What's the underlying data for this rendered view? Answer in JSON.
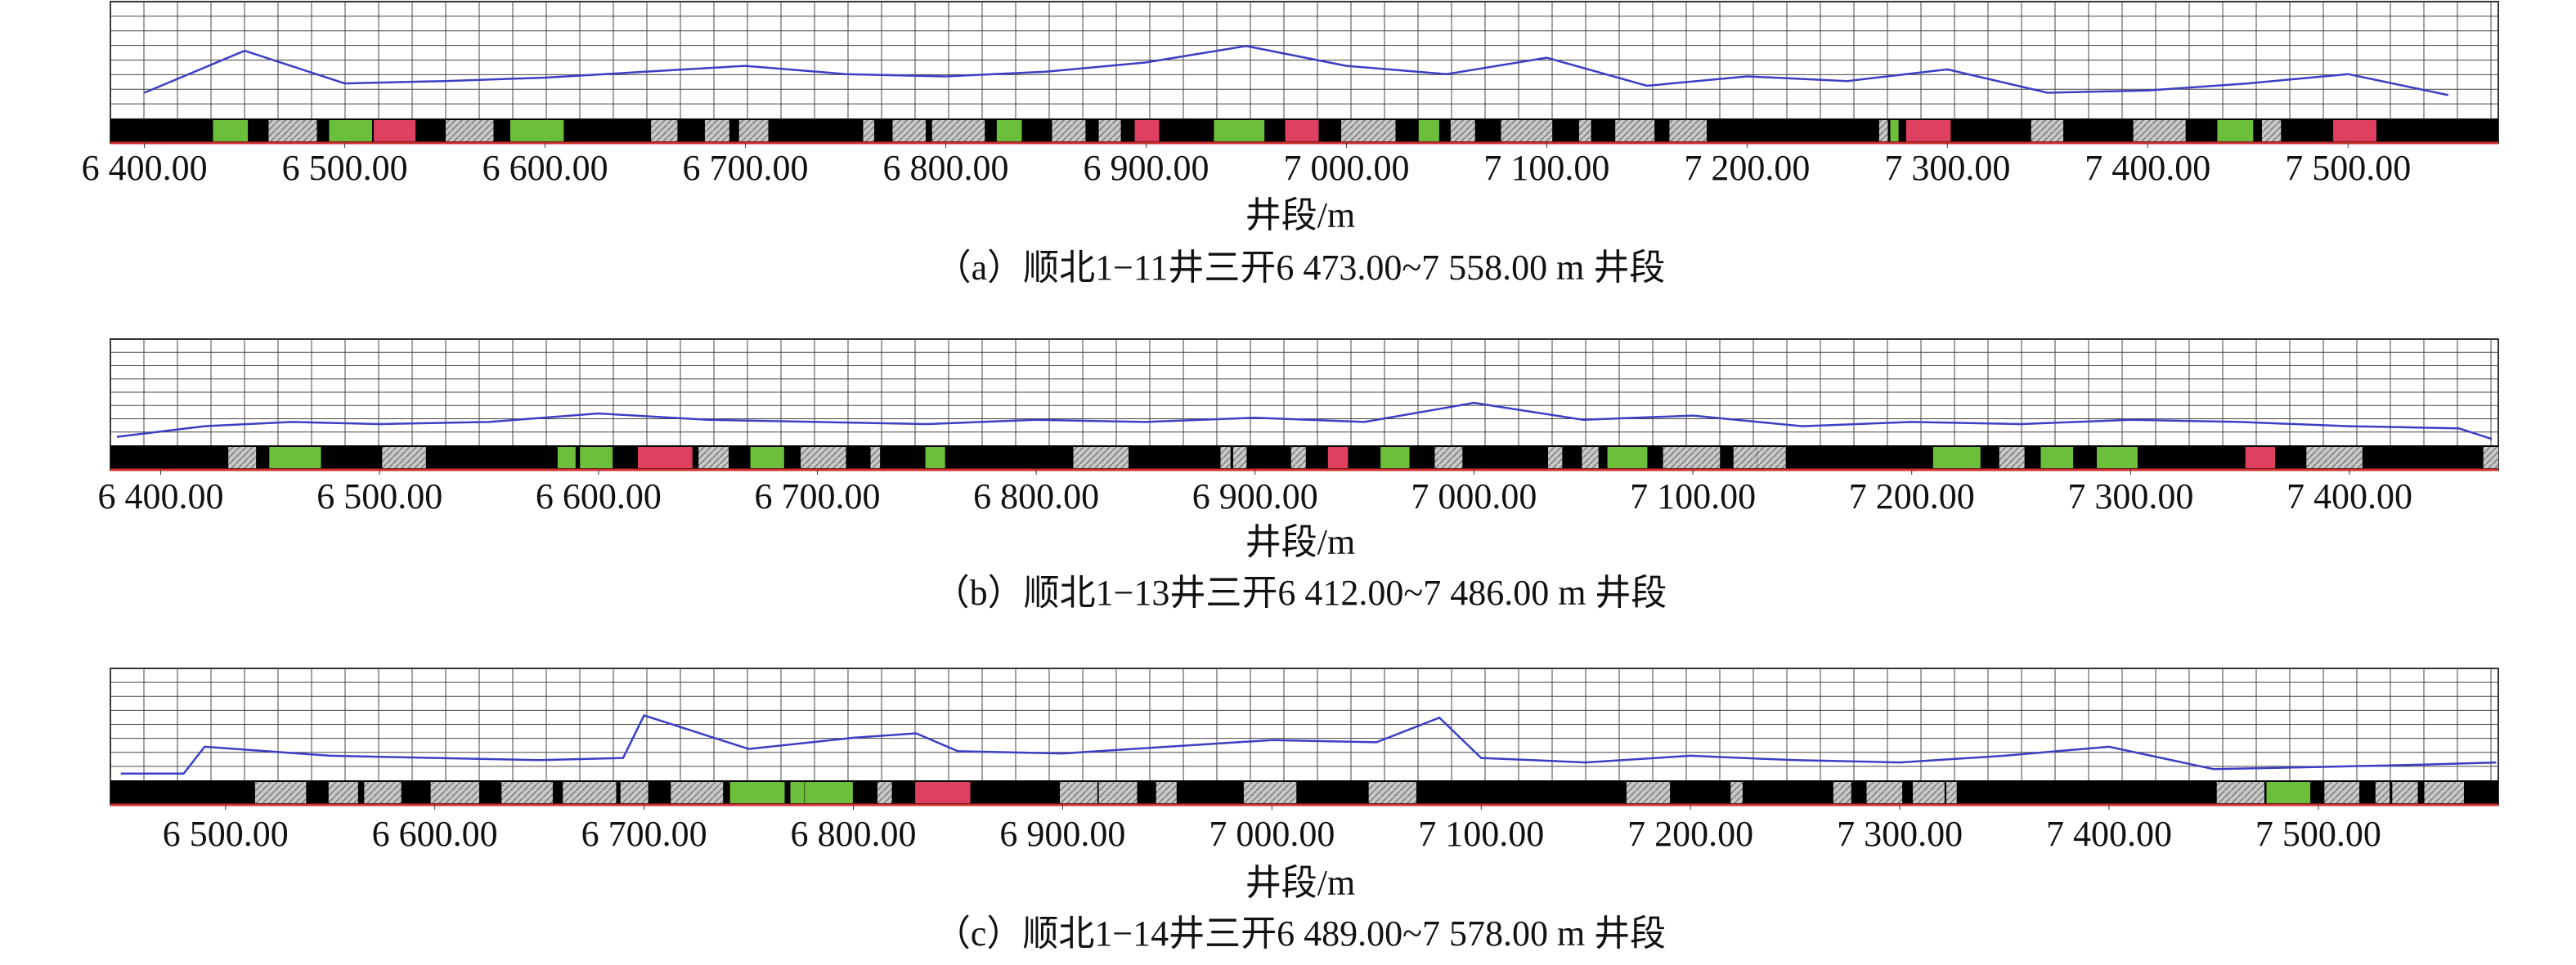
{
  "chart_data": [
    {
      "type": "line",
      "x_label": "井段/m",
      "caption": "（a）顺北1−11井三开6 473.00~7 558.00 m 井段",
      "x": [
        6400,
        6450,
        6500,
        6550,
        6600,
        6650,
        6700,
        6750,
        6800,
        6850,
        6900,
        6950,
        7000,
        7050,
        7100,
        7150,
        7200,
        7250,
        7300,
        7350,
        7400,
        7450,
        7500,
        7550
      ],
      "values": [
        22,
        58,
        30,
        32,
        35,
        40,
        45,
        38,
        36,
        40,
        48,
        62,
        45,
        38,
        52,
        28,
        36,
        32,
        42,
        22,
        24,
        30,
        38,
        20
      ],
      "color": "#3b3fc4",
      "xlim": [
        6383,
        7575
      ],
      "ylim": [
        0,
        100
      ],
      "xticks": [
        {
          "value": 6400,
          "label": "6 400.00"
        },
        {
          "value": 6500,
          "label": "6 500.00"
        },
        {
          "value": 6600,
          "label": "6 600.00"
        },
        {
          "value": 6700,
          "label": "6 700.00"
        },
        {
          "value": 6800,
          "label": "6 800.00"
        },
        {
          "value": 6900,
          "label": "6 900.00"
        },
        {
          "value": 7000,
          "label": "7 000.00"
        },
        {
          "value": 7100,
          "label": "7 100.00"
        },
        {
          "value": 7200,
          "label": "7 200.00"
        },
        {
          "value": 7300,
          "label": "7 300.00"
        },
        {
          "value": 7400,
          "label": "7 400.00"
        },
        {
          "value": 7500,
          "label": "7 500.00"
        }
      ]
    },
    {
      "type": "line",
      "x_label": "井段/m",
      "caption": "（b）顺北1−13井三开6 412.00~7 486.00 m 井段",
      "x": [
        6380,
        6420,
        6460,
        6500,
        6550,
        6600,
        6650,
        6700,
        6750,
        6800,
        6850,
        6900,
        6950,
        7000,
        7050,
        7100,
        7150,
        7200,
        7250,
        7300,
        7350,
        7400,
        7450,
        7465
      ],
      "values": [
        8,
        18,
        22,
        20,
        22,
        30,
        24,
        22,
        20,
        24,
        22,
        26,
        22,
        40,
        24,
        28,
        18,
        22,
        20,
        24,
        22,
        18,
        16,
        6
      ],
      "color": "#3b3fc4",
      "xlim": [
        6377,
        7468
      ],
      "ylim": [
        0,
        100
      ],
      "xticks": [
        {
          "value": 6400,
          "label": "6 400.00"
        },
        {
          "value": 6500,
          "label": "6 500.00"
        },
        {
          "value": 6600,
          "label": "6 600.00"
        },
        {
          "value": 6700,
          "label": "6 700.00"
        },
        {
          "value": 6800,
          "label": "6 800.00"
        },
        {
          "value": 6900,
          "label": "6 900.00"
        },
        {
          "value": 7000,
          "label": "7 000.00"
        },
        {
          "value": 7100,
          "label": "7 100.00"
        },
        {
          "value": 7200,
          "label": "7 200.00"
        },
        {
          "value": 7300,
          "label": "7 300.00"
        },
        {
          "value": 7400,
          "label": "7 400.00"
        }
      ]
    },
    {
      "type": "line",
      "x_label": "井段/m",
      "caption": "（c）顺北1−14井三开6 489.00~7 578.00 m 井段",
      "x": [
        6450,
        6480,
        6490,
        6550,
        6600,
        6650,
        6690,
        6700,
        6750,
        6800,
        6830,
        6850,
        6900,
        6950,
        7000,
        7050,
        7080,
        7100,
        7150,
        7200,
        7250,
        7300,
        7350,
        7400,
        7450,
        7500,
        7550,
        7585
      ],
      "values": [
        6,
        6,
        30,
        22,
        20,
        18,
        20,
        58,
        28,
        38,
        42,
        26,
        24,
        30,
        36,
        34,
        56,
        20,
        16,
        22,
        18,
        16,
        22,
        30,
        10,
        12,
        14,
        16
      ],
      "color": "#3b3fc4",
      "xlim": [
        6445,
        7586
      ],
      "ylim": [
        0,
        100
      ],
      "xticks": [
        {
          "value": 6500,
          "label": "6 500.00"
        },
        {
          "value": 6600,
          "label": "6 600.00"
        },
        {
          "value": 6700,
          "label": "6 700.00"
        },
        {
          "value": 6800,
          "label": "6 800.00"
        },
        {
          "value": 6900,
          "label": "6 900.00"
        },
        {
          "value": 7000,
          "label": "7 000.00"
        },
        {
          "value": 7100,
          "label": "7 100.00"
        },
        {
          "value": 7200,
          "label": "7 200.00"
        },
        {
          "value": 7300,
          "label": "7 300.00"
        },
        {
          "value": 7400,
          "label": "7 400.00"
        },
        {
          "value": 7500,
          "label": "7 500.00"
        }
      ]
    }
  ]
}
